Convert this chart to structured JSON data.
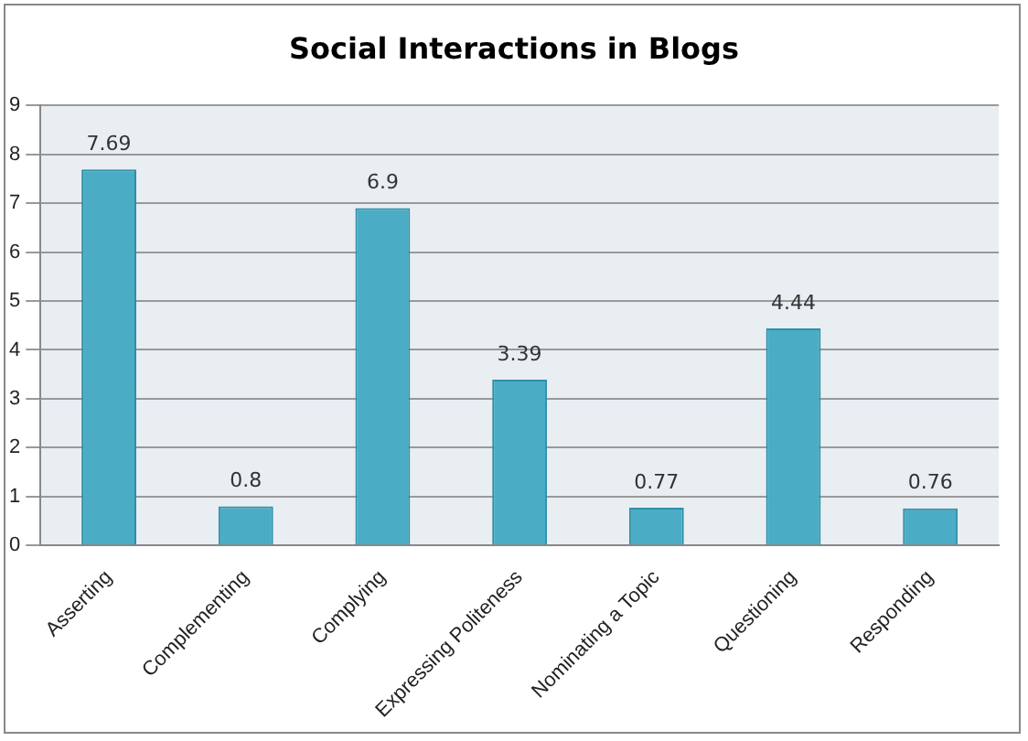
{
  "chart_data": {
    "type": "bar",
    "title": "Social Interactions in Blogs",
    "categories": [
      "Asserting",
      "Complementing",
      "Complying",
      "Expressing Politeness",
      "Nominating a Topic",
      "Questioning",
      "Responding"
    ],
    "values": [
      7.69,
      0.8,
      6.9,
      3.39,
      0.77,
      4.44,
      0.76
    ],
    "color": "#4bacc6",
    "ylim": [
      0,
      9
    ],
    "yticks": [
      0,
      1,
      2,
      3,
      4,
      5,
      6,
      7,
      8,
      9
    ],
    "grid": "y",
    "data_labels": true
  }
}
